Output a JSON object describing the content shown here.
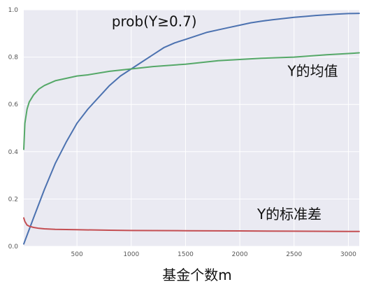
{
  "chart_data": {
    "type": "line",
    "xlabel": "基金个数m",
    "ylabel": "",
    "xlim": [
      10,
      3100
    ],
    "ylim": [
      0.0,
      1.0
    ],
    "grid": true,
    "x_ticks": [
      500,
      1000,
      1500,
      2000,
      2500,
      3000
    ],
    "y_ticks": [
      0.0,
      0.2,
      0.4,
      0.6,
      0.8,
      1.0
    ],
    "x_tick_labels": [
      "500",
      "1000",
      "1500",
      "2000",
      "2500",
      "3000"
    ],
    "y_tick_labels": [
      "0.0",
      "0.2",
      "0.4",
      "0.6",
      "0.8",
      "1.0"
    ],
    "colors": {
      "background": "#eaeaf2",
      "grid": "#ffffff",
      "blue": "#4c72b0",
      "green": "#55a868",
      "red": "#c44e52"
    },
    "series": [
      {
        "name": "prob(Y≥0.7)",
        "color": "#4c72b0",
        "x": [
          10,
          100,
          200,
          300,
          400,
          500,
          600,
          700,
          800,
          900,
          1000,
          1100,
          1200,
          1300,
          1400,
          1500,
          1600,
          1700,
          1800,
          1900,
          2000,
          2100,
          2200,
          2300,
          2400,
          2500,
          2600,
          2700,
          2800,
          2900,
          3000,
          3100
        ],
        "values": [
          0.01,
          0.12,
          0.24,
          0.35,
          0.44,
          0.52,
          0.58,
          0.63,
          0.68,
          0.72,
          0.75,
          0.78,
          0.81,
          0.84,
          0.86,
          0.875,
          0.89,
          0.905,
          0.915,
          0.925,
          0.935,
          0.945,
          0.952,
          0.958,
          0.963,
          0.968,
          0.972,
          0.976,
          0.979,
          0.982,
          0.984,
          0.985
        ]
      },
      {
        "name": "Y的均值",
        "color": "#55a868",
        "x": [
          10,
          20,
          40,
          60,
          100,
          150,
          200,
          300,
          400,
          500,
          600,
          800,
          1000,
          1200,
          1500,
          1800,
          2000,
          2200,
          2500,
          2800,
          3000,
          3100
        ],
        "values": [
          0.41,
          0.52,
          0.58,
          0.61,
          0.64,
          0.665,
          0.68,
          0.7,
          0.71,
          0.72,
          0.725,
          0.74,
          0.75,
          0.76,
          0.77,
          0.785,
          0.79,
          0.795,
          0.8,
          0.81,
          0.815,
          0.818
        ]
      },
      {
        "name": "Y的标准差",
        "color": "#c44e52",
        "x": [
          10,
          20,
          40,
          60,
          100,
          150,
          200,
          300,
          500,
          800,
          1000,
          1500,
          2000,
          2500,
          3000,
          3100
        ],
        "values": [
          0.12,
          0.105,
          0.09,
          0.085,
          0.08,
          0.076,
          0.074,
          0.072,
          0.07,
          0.068,
          0.067,
          0.066,
          0.065,
          0.064,
          0.063,
          0.063
        ]
      }
    ],
    "annotations": [
      {
        "text": "prob(Y≥0.7)",
        "x": 820,
        "y": 0.93
      },
      {
        "text": "Y的均值",
        "x": 2440,
        "y": 0.72
      },
      {
        "text": "Y的标准差",
        "x": 2160,
        "y": 0.115
      }
    ]
  }
}
